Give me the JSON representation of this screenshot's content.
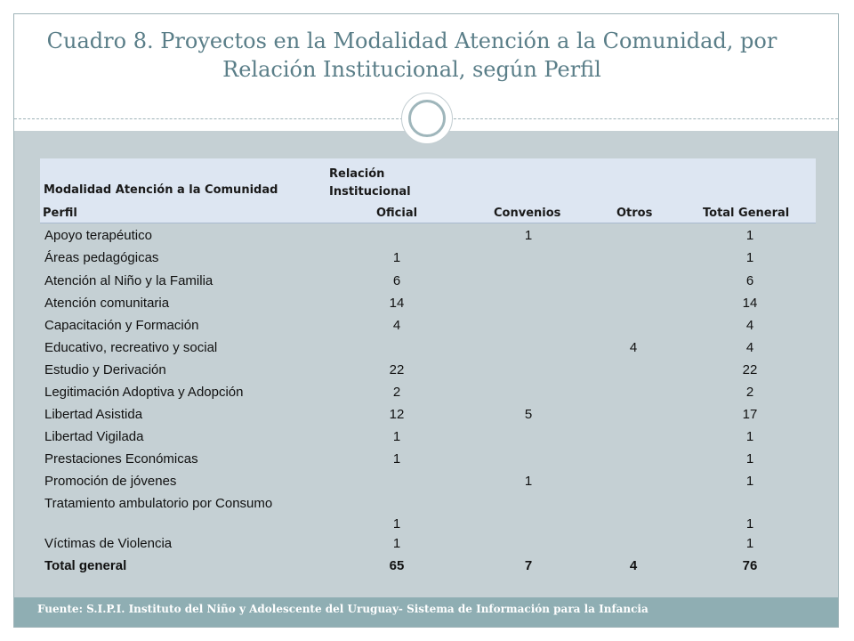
{
  "title": "Cuadro 8. Proyectos en la Modalidad Atención a la Comunidad, por Relación Institucional, según Perfil",
  "table": {
    "header": {
      "modalidad": "Modalidad Atención a la Comunidad",
      "relacion": "Relación Institucional",
      "perfil": "Perfil",
      "oficial": "Oficial",
      "convenios": "Convenios",
      "otros": "Otros",
      "total": "Total  General"
    },
    "rows": [
      {
        "perfil": "Apoyo terapéutico",
        "oficial": "",
        "convenios": "1",
        "otros": "",
        "total": "1"
      },
      {
        "perfil": "Áreas pedagógicas",
        "oficial": "1",
        "convenios": "",
        "otros": "",
        "total": "1"
      },
      {
        "perfil": "Atención al Niño y la Familia",
        "oficial": "6",
        "convenios": "",
        "otros": "",
        "total": "6"
      },
      {
        "perfil": "Atención comunitaria",
        "oficial": "14",
        "convenios": "",
        "otros": "",
        "total": "14"
      },
      {
        "perfil": "Capacitación y Formación",
        "oficial": "4",
        "convenios": "",
        "otros": "",
        "total": "4"
      },
      {
        "perfil": "Educativo, recreativo y social",
        "oficial": "",
        "convenios": "",
        "otros": "4",
        "total": "4"
      },
      {
        "perfil": "Estudio y Derivación",
        "oficial": "22",
        "convenios": "",
        "otros": "",
        "total": "22"
      },
      {
        "perfil": "Legitimación Adoptiva y Adopción",
        "oficial": "2",
        "convenios": "",
        "otros": "",
        "total": "2"
      },
      {
        "perfil": "Libertad Asistida",
        "oficial": "12",
        "convenios": "5",
        "otros": "",
        "total": "17"
      },
      {
        "perfil": "Libertad Vigilada",
        "oficial": "1",
        "convenios": "",
        "otros": "",
        "total": "1"
      },
      {
        "perfil": "Prestaciones Económicas",
        "oficial": "1",
        "convenios": "",
        "otros": "",
        "total": "1"
      },
      {
        "perfil": "Promoción de jóvenes",
        "oficial": "",
        "convenios": "1",
        "otros": "",
        "total": "1"
      },
      {
        "perfil": "Tratamiento ambulatorio por Consumo",
        "oficial": "1",
        "convenios": "",
        "otros": "",
        "total": "1"
      },
      {
        "perfil": "Víctimas de Violencia",
        "oficial": "1",
        "convenios": "",
        "otros": "",
        "total": "1"
      }
    ],
    "total_row": {
      "perfil": "Total general",
      "oficial": "65",
      "convenios": "7",
      "otros": "4",
      "total": "76"
    }
  },
  "footer": "Fuente: S.I.P.I. Instituto del Niño y Adolescente del Uruguay- Sistema de Información para la Infancia"
}
